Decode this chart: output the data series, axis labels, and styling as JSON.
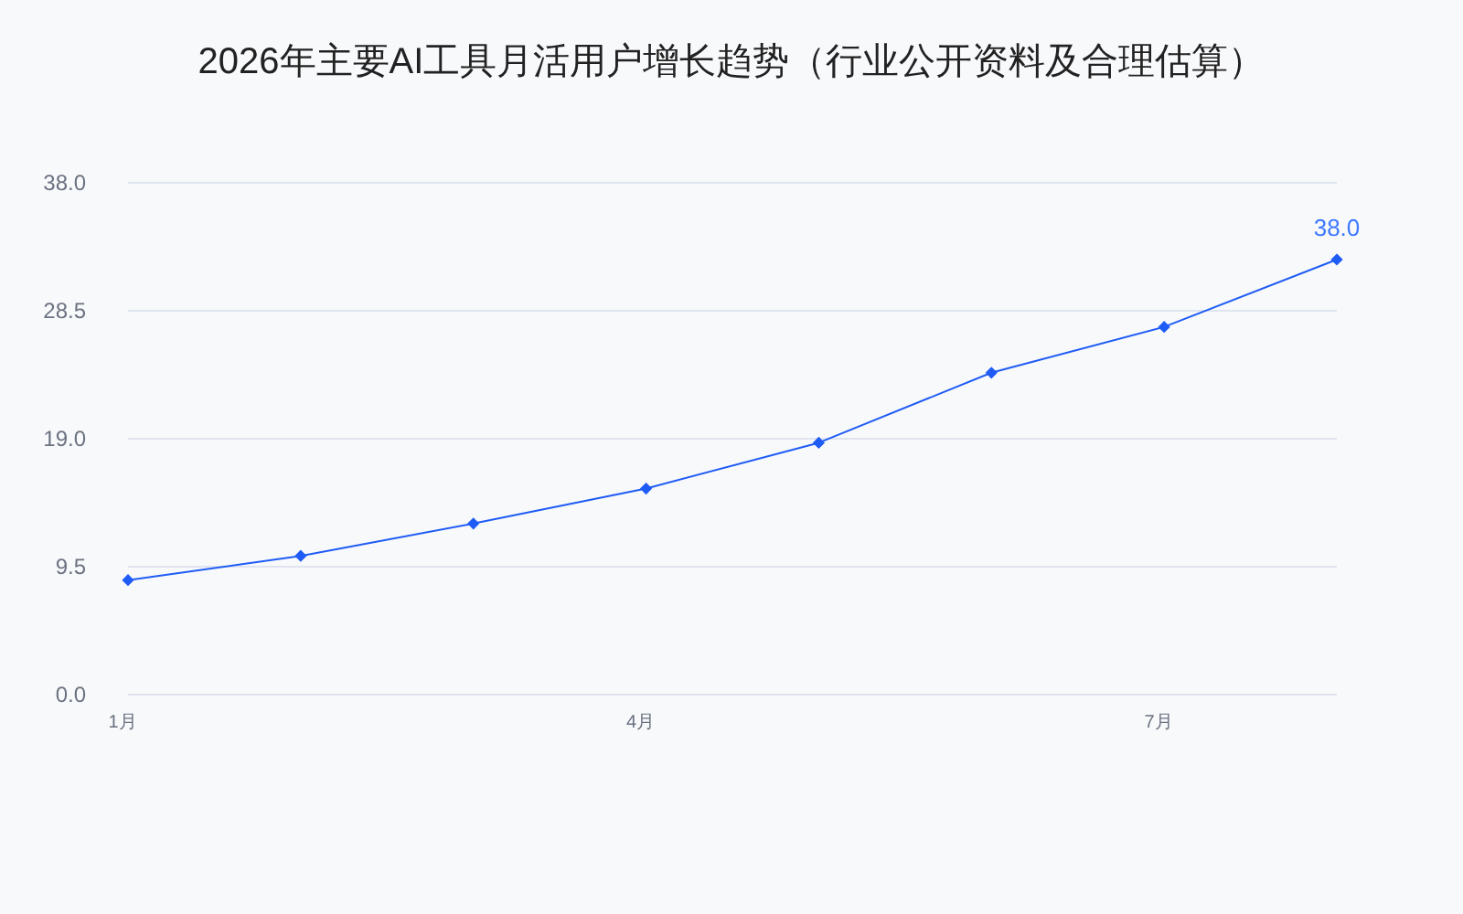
{
  "chart_data": {
    "type": "line",
    "title": "2026年主要AI工具月活用户增长趋势（行业公开资料及合理估算）",
    "categories": [
      "1月",
      null,
      null,
      "4月",
      null,
      null,
      "7月",
      null
    ],
    "values": [
      8.5,
      10.3,
      12.7,
      15.3,
      18.7,
      23.9,
      27.3,
      32.3
    ],
    "annotations": [
      "38.0"
    ],
    "color": "#1f5cf5",
    "ylim": [
      0,
      38
    ],
    "yticks": [
      {
        "value": 0,
        "label": "0.0"
      },
      9.5,
      {
        "value": 19,
        "label": "19.0"
      },
      28.5,
      {
        "value": 38,
        "label": "38.0"
      }
    ],
    "grid": "y",
    "marker": "diamond",
    "line_style": "solid"
  }
}
